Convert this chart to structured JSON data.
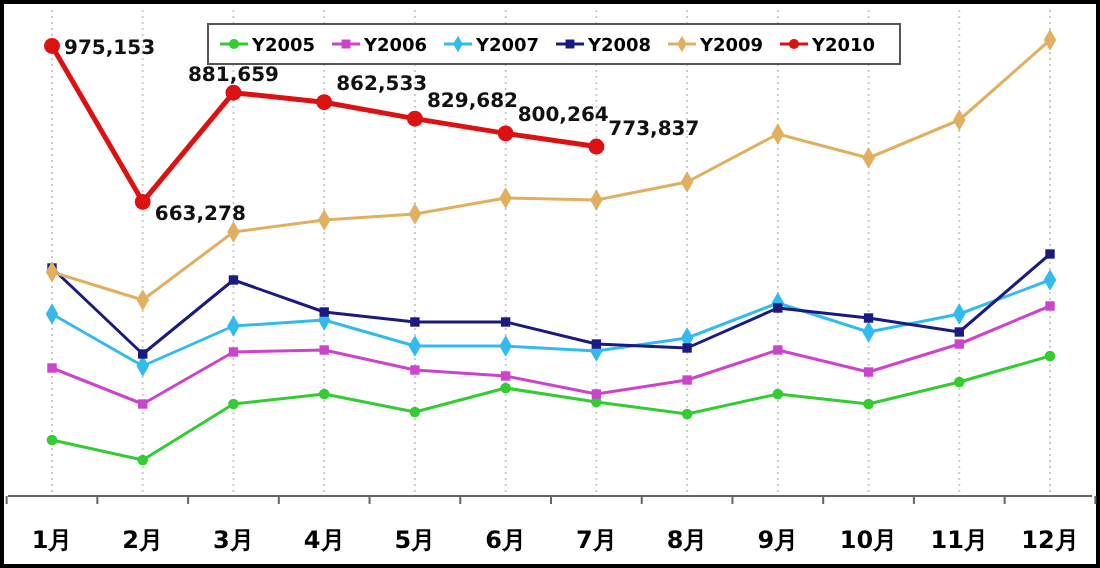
{
  "chart_data": {
    "type": "line",
    "categories": [
      "1月",
      "2月",
      "3月",
      "4月",
      "5月",
      "6月",
      "7月",
      "8月",
      "9月",
      "10月",
      "11月",
      "12月"
    ],
    "ylim": [
      75000,
      1047000
    ],
    "grid": "x",
    "legend": "top right",
    "tick_labels": "x",
    "series": [
      {
        "name": "Y2005",
        "color": "#33cc33",
        "marker": "circle",
        "values": [
          187000,
          147000,
          259000,
          279000,
          243000,
          291000,
          263000,
          239000,
          279000,
          259000,
          303000,
          355000
        ]
      },
      {
        "name": "Y2006",
        "color": "#cc44cc",
        "marker": "square",
        "values": [
          331000,
          259000,
          363000,
          367000,
          327000,
          315000,
          279000,
          307000,
          367000,
          323000,
          379000,
          455000
        ]
      },
      {
        "name": "Y2007",
        "color": "#33bbee",
        "marker": "diamond",
        "values": [
          439000,
          335000,
          415000,
          427000,
          375000,
          375000,
          365000,
          391000,
          461000,
          403000,
          439000,
          507000
        ]
      },
      {
        "name": "Y2008",
        "color": "#1a1a80",
        "marker": "square",
        "values": [
          531000,
          359000,
          507000,
          443000,
          423000,
          423000,
          379000,
          371000,
          451000,
          431000,
          403000,
          559000
        ]
      },
      {
        "name": "Y2009",
        "color": "#e0b060",
        "marker": "diamond",
        "values": [
          523000,
          467000,
          603000,
          627000,
          639000,
          671000,
          667000,
          703000,
          799000,
          751000,
          827000,
          987000
        ]
      },
      {
        "name": "Y2010",
        "color": "#dd1111",
        "marker": "circle",
        "values": [
          975153,
          663278,
          881659,
          862533,
          829682,
          800264,
          773837,
          null,
          null,
          null,
          null,
          null
        ],
        "value_labels": [
          "975,153",
          "663,278",
          "881,659",
          "862,533",
          "829,682",
          "800,264",
          "773,837",
          null,
          null,
          null,
          null,
          null
        ]
      }
    ]
  }
}
